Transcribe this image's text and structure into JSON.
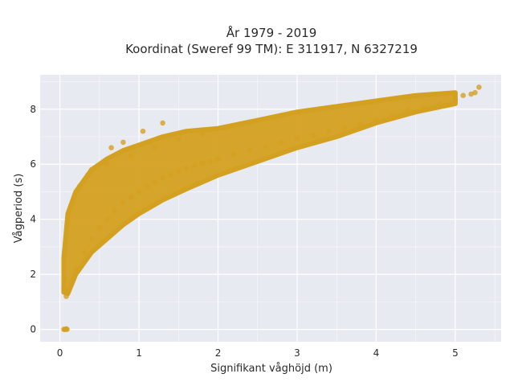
{
  "chart_data": {
    "type": "scatter",
    "title_line1": "År 1979 - 2019",
    "title_line2": "Koordinat (Sweref 99 TM): E 311917, N 6327219",
    "xlabel": "Signifikant våghöjd (m)",
    "ylabel": "Vågperiod (s)",
    "xlim": [
      -0.25,
      5.58
    ],
    "ylim": [
      -0.45,
      9.25
    ],
    "xticks": [
      0,
      1,
      2,
      3,
      4,
      5
    ],
    "yticks": [
      0,
      2,
      4,
      6,
      8
    ],
    "xtick_labels": [
      "0",
      "1",
      "2",
      "3",
      "4",
      "5"
    ],
    "ytick_labels": [
      "0",
      "2",
      "4",
      "6",
      "8"
    ],
    "grid": true,
    "legend": "none",
    "colors": {
      "point": "#D4A020",
      "plot_bg": "#E8EAF2",
      "grid": "#ffffff"
    },
    "series": [
      {
        "x": [
          0.05,
          0.06,
          0.07,
          0.08,
          0.09,
          0.05,
          0.08,
          0.1,
          0.2,
          0.3,
          0.4,
          0.5,
          0.6,
          0.7,
          0.8,
          0.9,
          1.0,
          1.1,
          1.2,
          1.3,
          1.4,
          1.5,
          1.6,
          1.7,
          1.8,
          1.9,
          2.0,
          2.2,
          2.4,
          2.6,
          2.8,
          3.0,
          3.2,
          3.4,
          3.6,
          3.8,
          4.0,
          4.2,
          4.4,
          4.6,
          4.8,
          5.0,
          5.1,
          5.2,
          5.25,
          5.3,
          0.65,
          0.8,
          1.05,
          1.3,
          0.4,
          0.6,
          0.9,
          1.2,
          1.5,
          1.8,
          2.1,
          0.15,
          0.25,
          0.35
        ],
        "y": [
          0.0,
          0.0,
          0.0,
          0.02,
          0.0,
          1.5,
          1.2,
          1.4,
          2.2,
          2.8,
          3.3,
          3.7,
          4.0,
          4.3,
          4.6,
          4.8,
          5.0,
          5.2,
          5.35,
          5.5,
          5.6,
          5.75,
          5.85,
          5.95,
          6.05,
          6.1,
          6.2,
          6.35,
          6.5,
          6.65,
          6.8,
          6.95,
          7.05,
          7.2,
          7.3,
          7.45,
          7.6,
          7.75,
          7.95,
          8.05,
          8.2,
          8.35,
          8.5,
          8.55,
          8.6,
          8.8,
          6.6,
          6.8,
          7.2,
          7.5,
          5.8,
          6.0,
          6.3,
          6.6,
          6.9,
          7.1,
          7.3,
          4.5,
          5.2,
          5.6
        ]
      }
    ]
  }
}
